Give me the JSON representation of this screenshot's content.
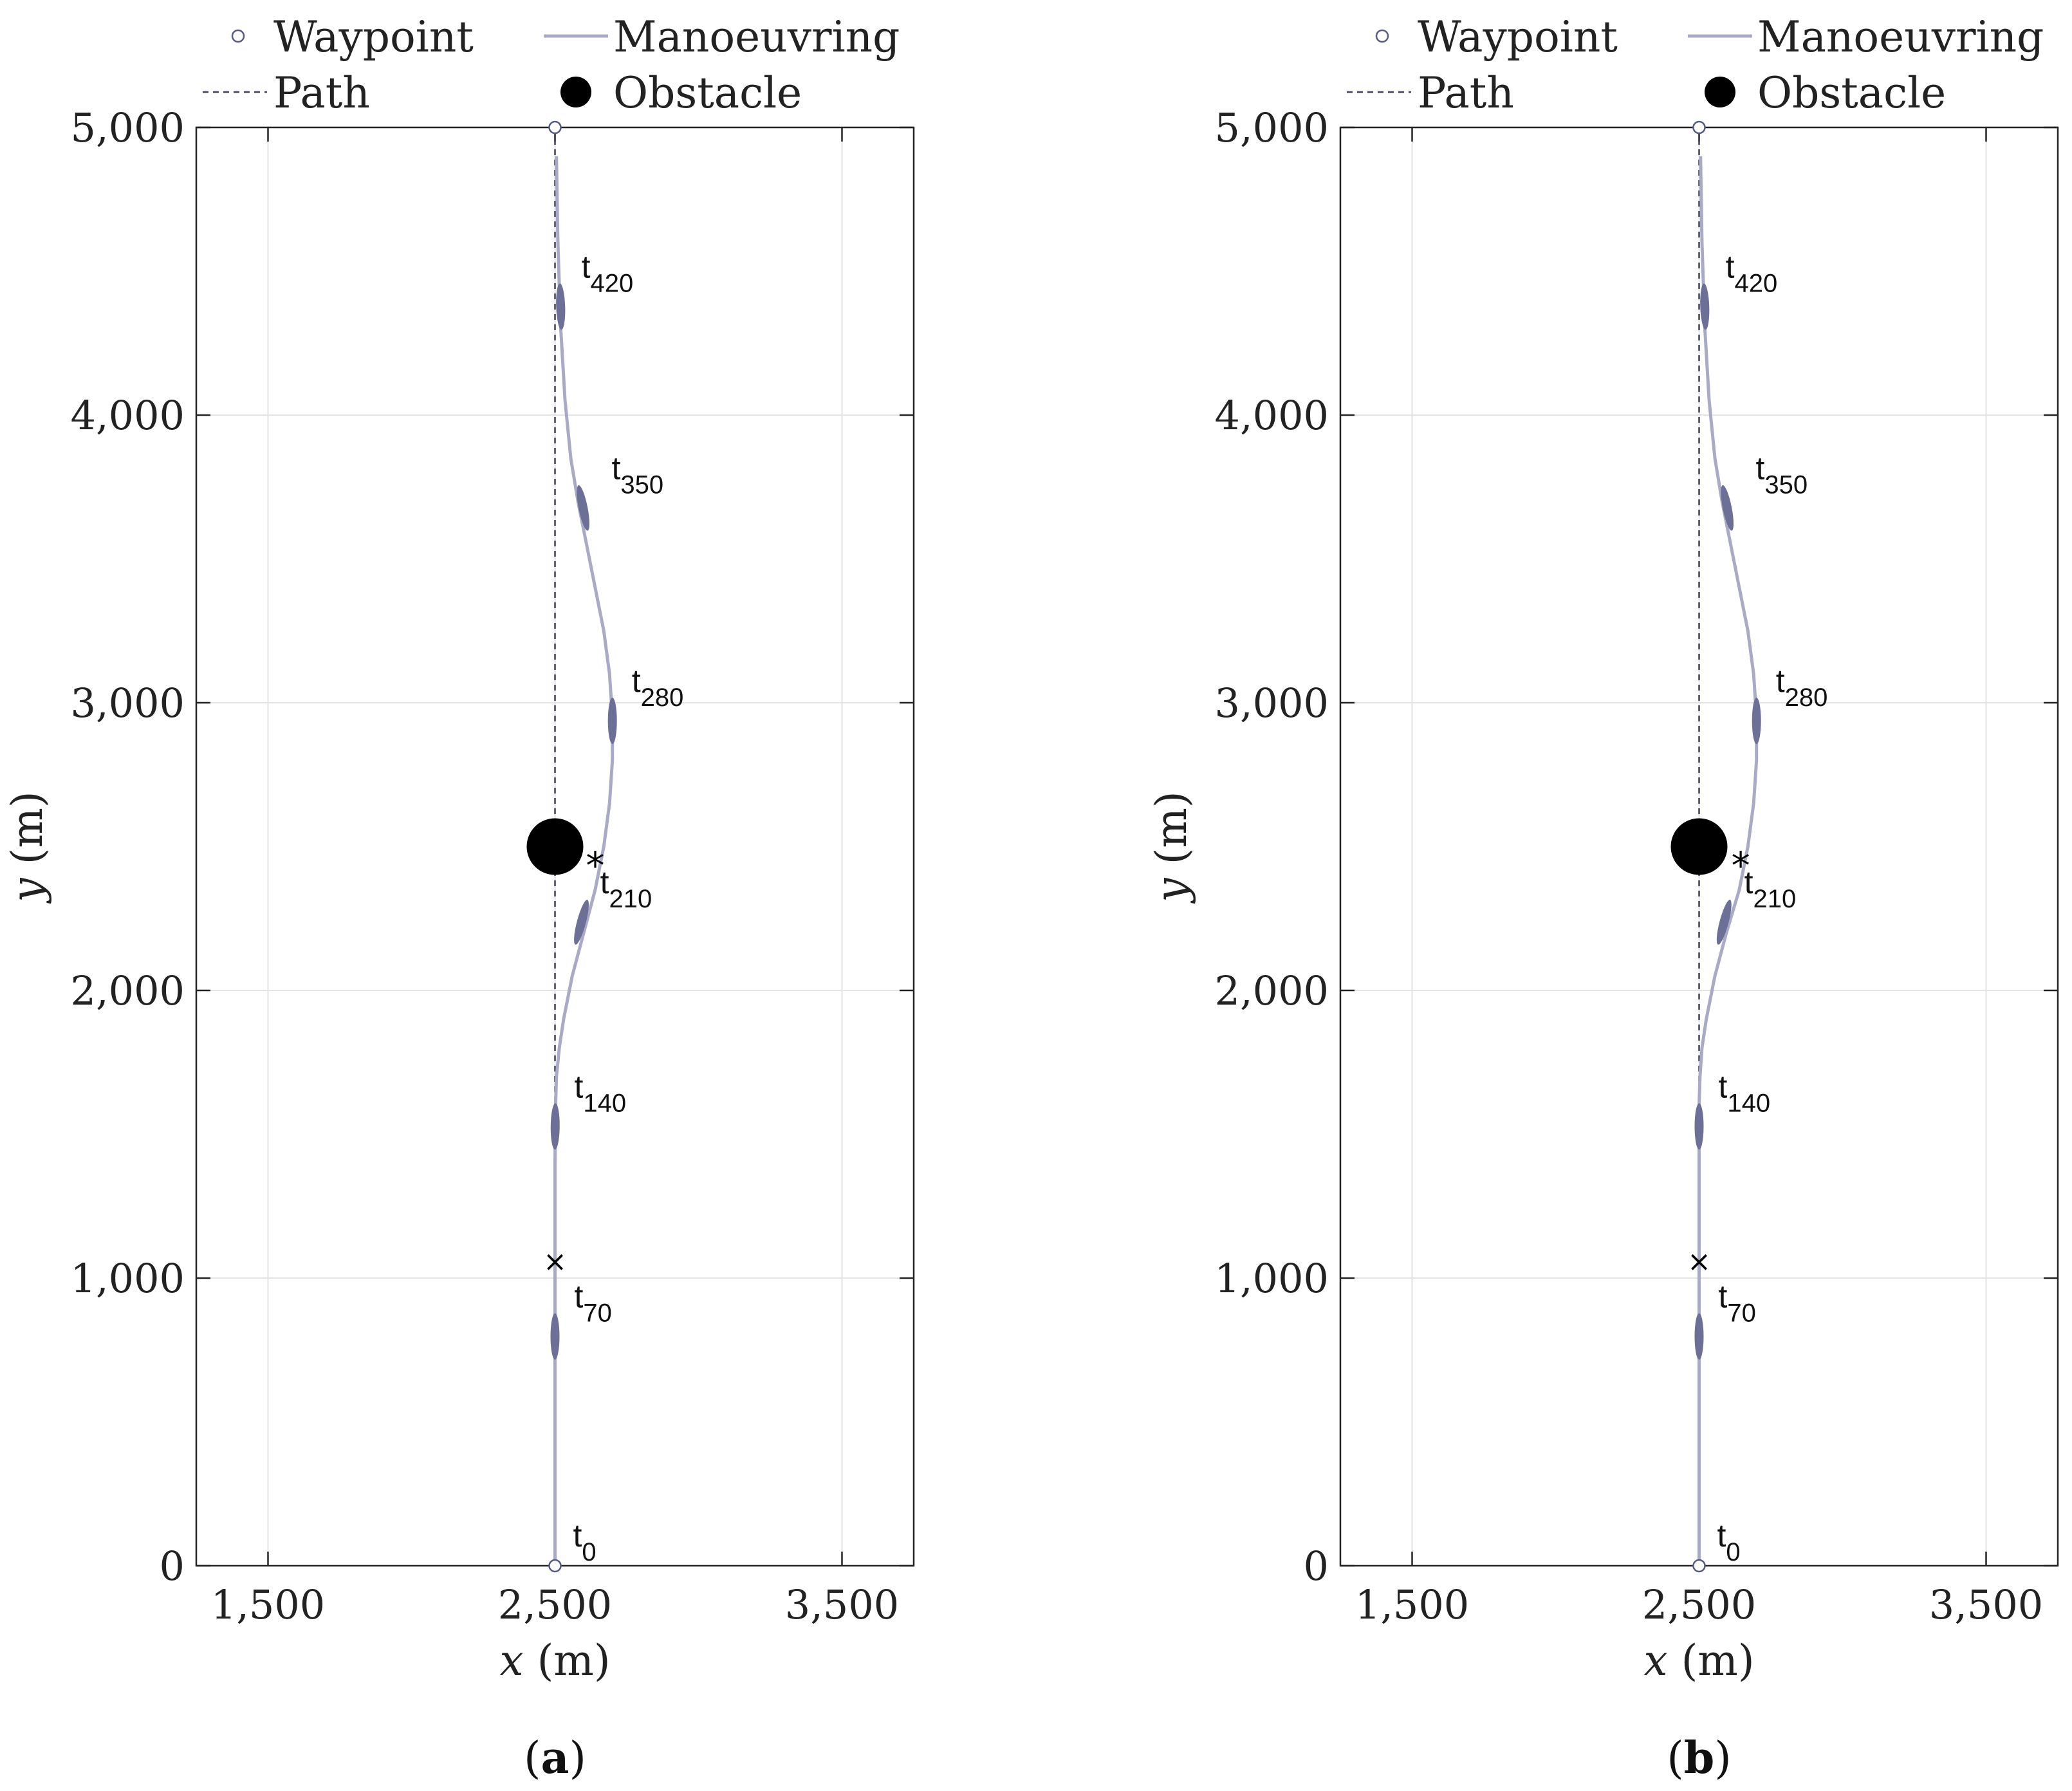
{
  "chart_data": [
    {
      "type": "line",
      "caption": "a",
      "xlabel_var": "x",
      "xlabel_unit": "(m)",
      "ylabel_var": "y",
      "ylabel_unit": "(m)",
      "xlim": [
        1250,
        3750
      ],
      "ylim": [
        0,
        5000
      ],
      "xticks": [
        1500,
        2500,
        3500
      ],
      "xtick_labels": [
        "1,500",
        "2,500",
        "3,500"
      ],
      "yticks": [
        0,
        1000,
        2000,
        3000,
        4000,
        5000
      ],
      "ytick_labels": [
        "0",
        "1,000",
        "2,000",
        "3,000",
        "4,000",
        "5,000"
      ],
      "grid": true,
      "legend": {
        "placement": "top",
        "entries": [
          {
            "marker": "open-circle",
            "label": "Waypoint"
          },
          {
            "marker": "solid-line",
            "label": "Manoeuvring"
          },
          {
            "marker": "dashed-line",
            "label": "Path"
          },
          {
            "marker": "filled-circle",
            "label": "Obstacle"
          }
        ]
      },
      "waypoints": [
        {
          "x": 2500,
          "y": 0
        },
        {
          "x": 2500,
          "y": 5000
        }
      ],
      "path": {
        "x": [
          2500,
          2500
        ],
        "y": [
          0,
          5000
        ]
      },
      "obstacle": {
        "x": 2500,
        "y": 2500
      },
      "cross_marker": {
        "x": 2500,
        "y": 1060,
        "symbol": "×"
      },
      "star_marker": {
        "x": 2640,
        "y": 2470,
        "symbol": "*"
      },
      "manoeuvring": {
        "x": [
          2500,
          2500,
          2500,
          2500,
          2500,
          2502,
          2505,
          2515,
          2530,
          2560,
          2600,
          2640,
          2670,
          2690,
          2700,
          2700,
          2690,
          2670,
          2640,
          2610,
          2580,
          2555,
          2535,
          2520,
          2510,
          2505
        ],
        "y": [
          0,
          400,
          800,
          1100,
          1400,
          1600,
          1700,
          1800,
          1900,
          2050,
          2200,
          2350,
          2500,
          2650,
          2800,
          2950,
          3100,
          3250,
          3400,
          3550,
          3700,
          3850,
          4050,
          4300,
          4600,
          4900
        ]
      },
      "time_labels": [
        {
          "base": "t",
          "sub": "0",
          "x": 2500,
          "y": 0
        },
        {
          "base": "t",
          "sub": "70",
          "x": 2500,
          "y": 730
        },
        {
          "base": "t",
          "sub": "140",
          "x": 2500,
          "y": 1460
        },
        {
          "base": "t",
          "sub": "210",
          "x": 2590,
          "y": 2170
        },
        {
          "base": "t",
          "sub": "280",
          "x": 2700,
          "y": 2870
        },
        {
          "base": "t",
          "sub": "350",
          "x": 2630,
          "y": 3610
        },
        {
          "base": "t",
          "sub": "420",
          "x": 2525,
          "y": 4310
        }
      ]
    },
    {
      "type": "line",
      "caption": "b",
      "xlabel_var": "x",
      "xlabel_unit": "(m)",
      "ylabel_var": "y",
      "ylabel_unit": "(m)",
      "xlim": [
        1250,
        3750
      ],
      "ylim": [
        0,
        5000
      ],
      "xticks": [
        1500,
        2500,
        3500
      ],
      "xtick_labels": [
        "1,500",
        "2,500",
        "3,500"
      ],
      "yticks": [
        0,
        1000,
        2000,
        3000,
        4000,
        5000
      ],
      "ytick_labels": [
        "0",
        "1,000",
        "2,000",
        "3,000",
        "4,000",
        "5,000"
      ],
      "grid": true,
      "legend": {
        "placement": "top",
        "entries": [
          {
            "marker": "open-circle",
            "label": "Waypoint"
          },
          {
            "marker": "solid-line",
            "label": "Manoeuvring"
          },
          {
            "marker": "dashed-line",
            "label": "Path"
          },
          {
            "marker": "filled-circle",
            "label": "Obstacle"
          }
        ]
      },
      "waypoints": [
        {
          "x": 2500,
          "y": 0
        },
        {
          "x": 2500,
          "y": 5000
        }
      ],
      "path": {
        "x": [
          2500,
          2500
        ],
        "y": [
          0,
          5000
        ]
      },
      "obstacle": {
        "x": 2500,
        "y": 2500
      },
      "cross_marker": {
        "x": 2500,
        "y": 1060,
        "symbol": "×"
      },
      "star_marker": {
        "x": 2645,
        "y": 2470,
        "symbol": "*"
      },
      "manoeuvring": {
        "x": [
          2500,
          2500,
          2500,
          2500,
          2500,
          2500,
          2503,
          2510,
          2525,
          2555,
          2595,
          2640,
          2670,
          2690,
          2700,
          2700,
          2690,
          2670,
          2640,
          2610,
          2580,
          2555,
          2535,
          2520,
          2510,
          2505
        ],
        "y": [
          0,
          400,
          800,
          1100,
          1400,
          1600,
          1700,
          1800,
          1900,
          2050,
          2200,
          2350,
          2500,
          2650,
          2800,
          2950,
          3100,
          3250,
          3400,
          3550,
          3700,
          3850,
          4050,
          4300,
          4600,
          4900
        ]
      },
      "time_labels": [
        {
          "base": "t",
          "sub": "0",
          "x": 2500,
          "y": 0
        },
        {
          "base": "t",
          "sub": "70",
          "x": 2500,
          "y": 730
        },
        {
          "base": "t",
          "sub": "140",
          "x": 2500,
          "y": 1460
        },
        {
          "base": "t",
          "sub": "210",
          "x": 2590,
          "y": 2170
        },
        {
          "base": "t",
          "sub": "280",
          "x": 2700,
          "y": 2870
        },
        {
          "base": "t",
          "sub": "350",
          "x": 2630,
          "y": 3610
        },
        {
          "base": "t",
          "sub": "420",
          "x": 2525,
          "y": 4310
        }
      ]
    }
  ],
  "colors": {
    "manoeuvring": "#a9abc6",
    "ship": "#6c7096",
    "path": "#3c3f5e",
    "waypoint": "#555a82",
    "obstacle": "#000000",
    "grid": "#e3e3e3",
    "axis": "#222222"
  }
}
